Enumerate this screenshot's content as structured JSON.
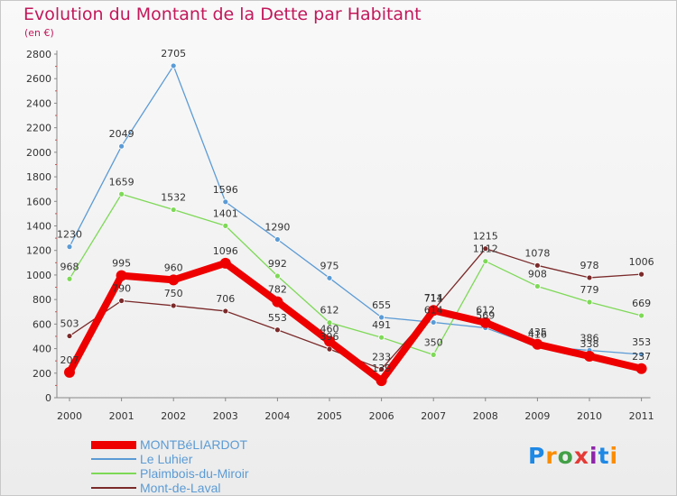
{
  "header": {
    "title": "Evolution du Montant de la Dette par Habitant",
    "unit": "(en €)"
  },
  "logo": {
    "text": "Proxiti",
    "letters": [
      {
        "ch": "P",
        "color": "#1e88e5"
      },
      {
        "ch": "r",
        "color": "#fb8c00"
      },
      {
        "ch": "o",
        "color": "#43a047"
      },
      {
        "ch": "x",
        "color": "#e53935"
      },
      {
        "ch": "i",
        "color": "#8e24aa"
      },
      {
        "ch": "t",
        "color": "#1e88e5"
      },
      {
        "ch": "i",
        "color": "#fb8c00"
      }
    ]
  },
  "chart_data": {
    "type": "line",
    "title": "Evolution du Montant de la Dette par Habitant",
    "ylabel": "(en €)",
    "xlabel": "",
    "x": [
      "2000",
      "2001",
      "2002",
      "2003",
      "2004",
      "2005",
      "2006",
      "2007",
      "2008",
      "2009",
      "2010",
      "2011"
    ],
    "ylim": [
      0,
      2800
    ],
    "yticks": [
      0,
      200,
      400,
      600,
      800,
      1000,
      1200,
      1400,
      1600,
      1800,
      2000,
      2200,
      2400,
      2600,
      2800
    ],
    "grid": false,
    "legend": "bottom-left",
    "series": [
      {
        "name": "Le Luhier",
        "color": "#5b9bd5",
        "values": [
          1230,
          2049,
          2705,
          1596,
          1290,
          975,
          655,
          614,
          569,
          416,
          386,
          353
        ],
        "labels": [
          "1230",
          "2049",
          "2705",
          "1596",
          "1290",
          "975",
          "655",
          "614",
          "569",
          "416",
          "386",
          "353"
        ]
      },
      {
        "name": "Plaimbois-du-Miroir",
        "color": "#7ed957",
        "values": [
          968,
          1659,
          1532,
          1401,
          992,
          612,
          491,
          350,
          1112,
          908,
          779,
          669
        ],
        "labels": [
          "968",
          "1659",
          "1532",
          "1401",
          "992",
          "612",
          "491",
          "350",
          "1112",
          "908",
          "779",
          "669"
        ]
      },
      {
        "name": "Mont-de-Laval",
        "color": "#7b2a2a",
        "values": [
          503,
          790,
          750,
          706,
          553,
          396,
          233,
          714,
          1215,
          1078,
          978,
          1006
        ],
        "labels": [
          "503",
          "790",
          "750",
          "706",
          "553",
          "396",
          "233",
          "714",
          "1215",
          "1078",
          "978",
          "1006"
        ]
      },
      {
        "name": "MONTBéLIARDOT",
        "color": "#ee0000",
        "values": [
          207,
          995,
          960,
          1096,
          782,
          460,
          139,
          711,
          612,
          435,
          338,
          237
        ],
        "labels": [
          "207",
          "995",
          "960",
          "1096",
          "782",
          "460",
          "139",
          "711",
          "612",
          "435",
          "338",
          "237"
        ]
      }
    ]
  }
}
